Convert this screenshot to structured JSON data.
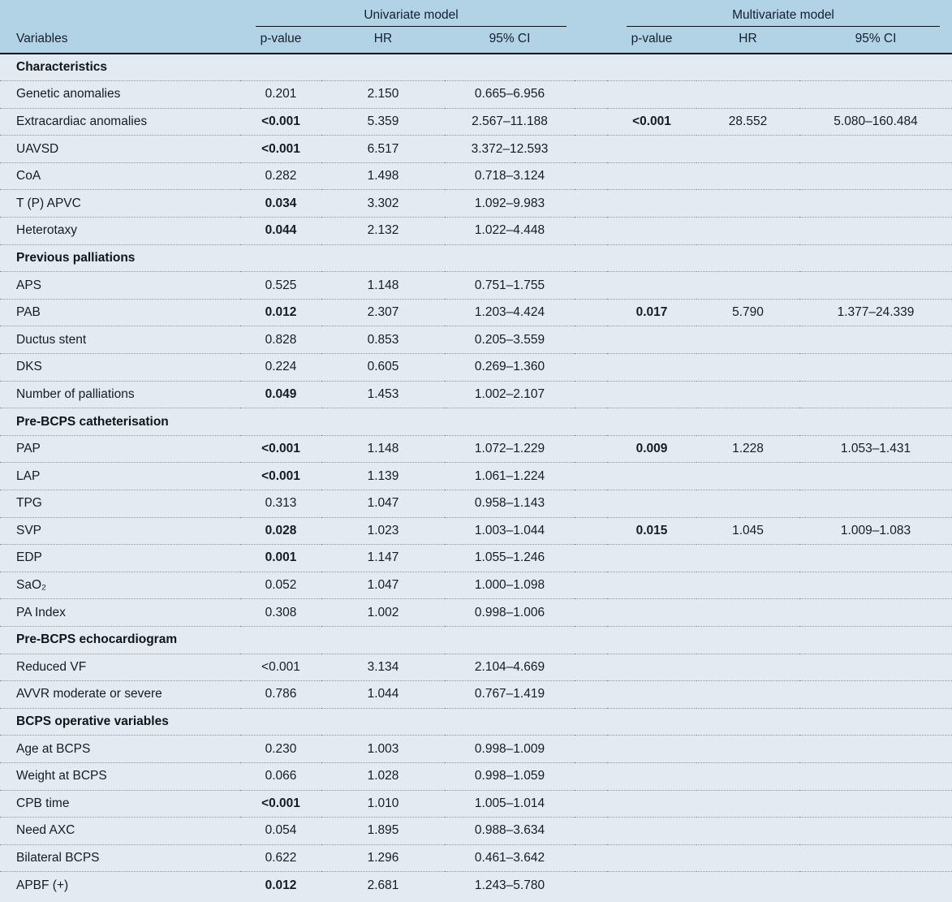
{
  "colors": {
    "header_background": "#b2d2e6",
    "body_background": "#e4eaf1",
    "rule_dark": "#0c1016",
    "row_divider": "#8d949c"
  },
  "table": {
    "groups": {
      "univariate": "Univariate model",
      "multivariate": "Multivariate model"
    },
    "columns": {
      "variables": "Variables",
      "p_value": "p-value",
      "hr": "HR",
      "ci": "95% CI"
    },
    "sections": [
      {
        "title": "Characteristics",
        "rows": [
          {
            "label": "Genetic anomalies",
            "u": {
              "p": "0.201",
              "p_bold": false,
              "hr": "2.150",
              "ci": "0.665–6.956"
            }
          },
          {
            "label": "Extracardiac anomalies",
            "u": {
              "p": "<0.001",
              "p_bold": true,
              "hr": "5.359",
              "ci": "2.567–11.188"
            },
            "m": {
              "p": "<0.001",
              "p_bold": true,
              "hr": "28.552",
              "ci": "5.080–160.484"
            }
          },
          {
            "label": "UAVSD",
            "u": {
              "p": "<0.001",
              "p_bold": true,
              "hr": "6.517",
              "ci": "3.372–12.593"
            }
          },
          {
            "label": "CoA",
            "u": {
              "p": "0.282",
              "p_bold": false,
              "hr": "1.498",
              "ci": "0.718–3.124"
            }
          },
          {
            "label": "T (P) APVC",
            "u": {
              "p": "0.034",
              "p_bold": true,
              "hr": "3.302",
              "ci": "1.092–9.983"
            }
          },
          {
            "label": "Heterotaxy",
            "u": {
              "p": "0.044",
              "p_bold": true,
              "hr": "2.132",
              "ci": "1.022–4.448"
            }
          }
        ]
      },
      {
        "title": "Previous palliations",
        "rows": [
          {
            "label": "APS",
            "u": {
              "p": "0.525",
              "p_bold": false,
              "hr": "1.148",
              "ci": "0.751–1.755"
            }
          },
          {
            "label": "PAB",
            "u": {
              "p": "0.012",
              "p_bold": true,
              "hr": "2.307",
              "ci": "1.203–4.424"
            },
            "m": {
              "p": "0.017",
              "p_bold": true,
              "hr": "5.790",
              "ci": "1.377–24.339"
            }
          },
          {
            "label": "Ductus stent",
            "u": {
              "p": "0.828",
              "p_bold": false,
              "hr": "0.853",
              "ci": "0.205–3.559"
            }
          },
          {
            "label": "DKS",
            "u": {
              "p": "0.224",
              "p_bold": false,
              "hr": "0.605",
              "ci": "0.269–1.360"
            }
          },
          {
            "label": "Number of palliations",
            "u": {
              "p": "0.049",
              "p_bold": true,
              "hr": "1.453",
              "ci": "1.002–2.107"
            }
          }
        ]
      },
      {
        "title": "Pre-BCPS catheterisation",
        "rows": [
          {
            "label": "PAP",
            "u": {
              "p": "<0.001",
              "p_bold": true,
              "hr": "1.148",
              "ci": "1.072–1.229"
            },
            "m": {
              "p": "0.009",
              "p_bold": true,
              "hr": "1.228",
              "ci": "1.053–1.431"
            }
          },
          {
            "label": "LAP",
            "u": {
              "p": "<0.001",
              "p_bold": true,
              "hr": "1.139",
              "ci": "1.061–1.224"
            }
          },
          {
            "label": "TPG",
            "u": {
              "p": "0.313",
              "p_bold": false,
              "hr": "1.047",
              "ci": "0.958–1.143"
            }
          },
          {
            "label": "SVP",
            "u": {
              "p": "0.028",
              "p_bold": true,
              "hr": "1.023",
              "ci": "1.003–1.044"
            },
            "m": {
              "p": "0.015",
              "p_bold": true,
              "hr": "1.045",
              "ci": "1.009–1.083"
            }
          },
          {
            "label": "EDP",
            "u": {
              "p": "0.001",
              "p_bold": true,
              "hr": "1.147",
              "ci": "1.055–1.246"
            }
          },
          {
            "label": "SaO₂",
            "u": {
              "p": "0.052",
              "p_bold": false,
              "hr": "1.047",
              "ci": "1.000–1.098"
            }
          },
          {
            "label": "PA Index",
            "u": {
              "p": "0.308",
              "p_bold": false,
              "hr": "1.002",
              "ci": "0.998–1.006"
            }
          }
        ]
      },
      {
        "title": "Pre-BCPS echocardiogram",
        "rows": [
          {
            "label": "Reduced VF",
            "u": {
              "p": "<0.001",
              "p_bold": false,
              "hr": "3.134",
              "ci": "2.104–4.669"
            }
          },
          {
            "label": "AVVR moderate or severe",
            "u": {
              "p": "0.786",
              "p_bold": false,
              "hr": "1.044",
              "ci": "0.767–1.419"
            }
          }
        ]
      },
      {
        "title": "BCPS operative variables",
        "rows": [
          {
            "label": "Age at BCPS",
            "u": {
              "p": "0.230",
              "p_bold": false,
              "hr": "1.003",
              "ci": "0.998–1.009"
            }
          },
          {
            "label": "Weight at BCPS",
            "u": {
              "p": "0.066",
              "p_bold": false,
              "hr": "1.028",
              "ci": "0.998–1.059"
            }
          },
          {
            "label": "CPB time",
            "u": {
              "p": "<0.001",
              "p_bold": true,
              "hr": "1.010",
              "ci": "1.005–1.014"
            }
          },
          {
            "label": "Need AXC",
            "u": {
              "p": "0.054",
              "p_bold": false,
              "hr": "1.895",
              "ci": "0.988–3.634"
            }
          },
          {
            "label": "Bilateral BCPS",
            "u": {
              "p": "0.622",
              "p_bold": false,
              "hr": "1.296",
              "ci": "0.461–3.642"
            }
          },
          {
            "label": "APBF (+)",
            "u": {
              "p": "0.012",
              "p_bold": true,
              "hr": "2.681",
              "ci": "1.243–5.780"
            }
          }
        ]
      }
    ]
  }
}
